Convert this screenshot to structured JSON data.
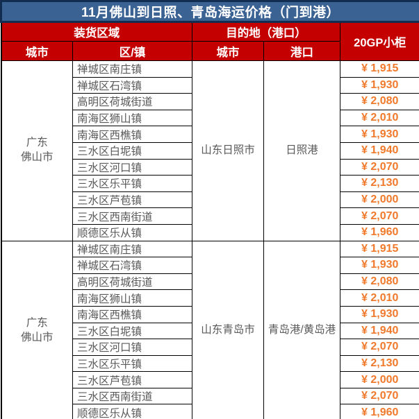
{
  "title": "11月佛山到日照、青岛海运价格（门到港）",
  "header": {
    "loading_area": "装货区域",
    "destination": "目的地（港口）",
    "container_price": "20GP小柜",
    "origin_city": "城市",
    "district": "区/镇",
    "dest_city": "城市",
    "port": "港口"
  },
  "table": {
    "blocks": [
      {
        "origin": [
          "广东",
          "佛山市"
        ],
        "dest_city": "山东日照市",
        "port": "日照港",
        "rows": [
          {
            "district": "禅城区南庄镇",
            "price": "¥ 1,915"
          },
          {
            "district": "禅城区石湾镇",
            "price": "¥ 1,930"
          },
          {
            "district": "高明区荷城街道",
            "price": "¥ 2,080"
          },
          {
            "district": "南海区狮山镇",
            "price": "¥ 2,010"
          },
          {
            "district": "南海区西樵镇",
            "price": "¥ 1,930"
          },
          {
            "district": "三水区白坭镇",
            "price": "¥ 1,940"
          },
          {
            "district": "三水区河口镇",
            "price": "¥ 2,070"
          },
          {
            "district": "三水区乐平镇",
            "price": "¥ 2,130"
          },
          {
            "district": "三水区芦苞镇",
            "price": "¥ 2,000"
          },
          {
            "district": "三水区西南街道",
            "price": "¥ 2,070"
          },
          {
            "district": "顺德区乐从镇",
            "price": "¥ 1,960"
          }
        ]
      },
      {
        "origin": [
          "广东",
          "佛山市"
        ],
        "dest_city": "山东青岛市",
        "port": "青岛港/黄岛港",
        "rows": [
          {
            "district": "禅城区南庄镇",
            "price": "¥ 1,915"
          },
          {
            "district": "禅城区石湾镇",
            "price": "¥ 1,930"
          },
          {
            "district": "高明区荷城街道",
            "price": "¥ 2,080"
          },
          {
            "district": "南海区狮山镇",
            "price": "¥ 2,010"
          },
          {
            "district": "南海区西樵镇",
            "price": "¥ 1,930"
          },
          {
            "district": "三水区白坭镇",
            "price": "¥ 1,940"
          },
          {
            "district": "三水区河口镇",
            "price": "¥ 2,070"
          },
          {
            "district": "三水区乐平镇",
            "price": "¥ 2,130"
          },
          {
            "district": "三水区芦苞镇",
            "price": "¥ 2,000"
          },
          {
            "district": "三水区西南街道",
            "price": "¥ 2,070"
          },
          {
            "district": "顺德区乐从镇",
            "price": "¥ 1,960"
          }
        ]
      }
    ]
  },
  "colors": {
    "title_bg": "#3A6293",
    "title_border": "#122D50",
    "header_bg": "#C40000",
    "header_text": "#FFFFFF",
    "price_text": "#F0792B",
    "body_text": "#595959",
    "grid_border": "#000000"
  }
}
